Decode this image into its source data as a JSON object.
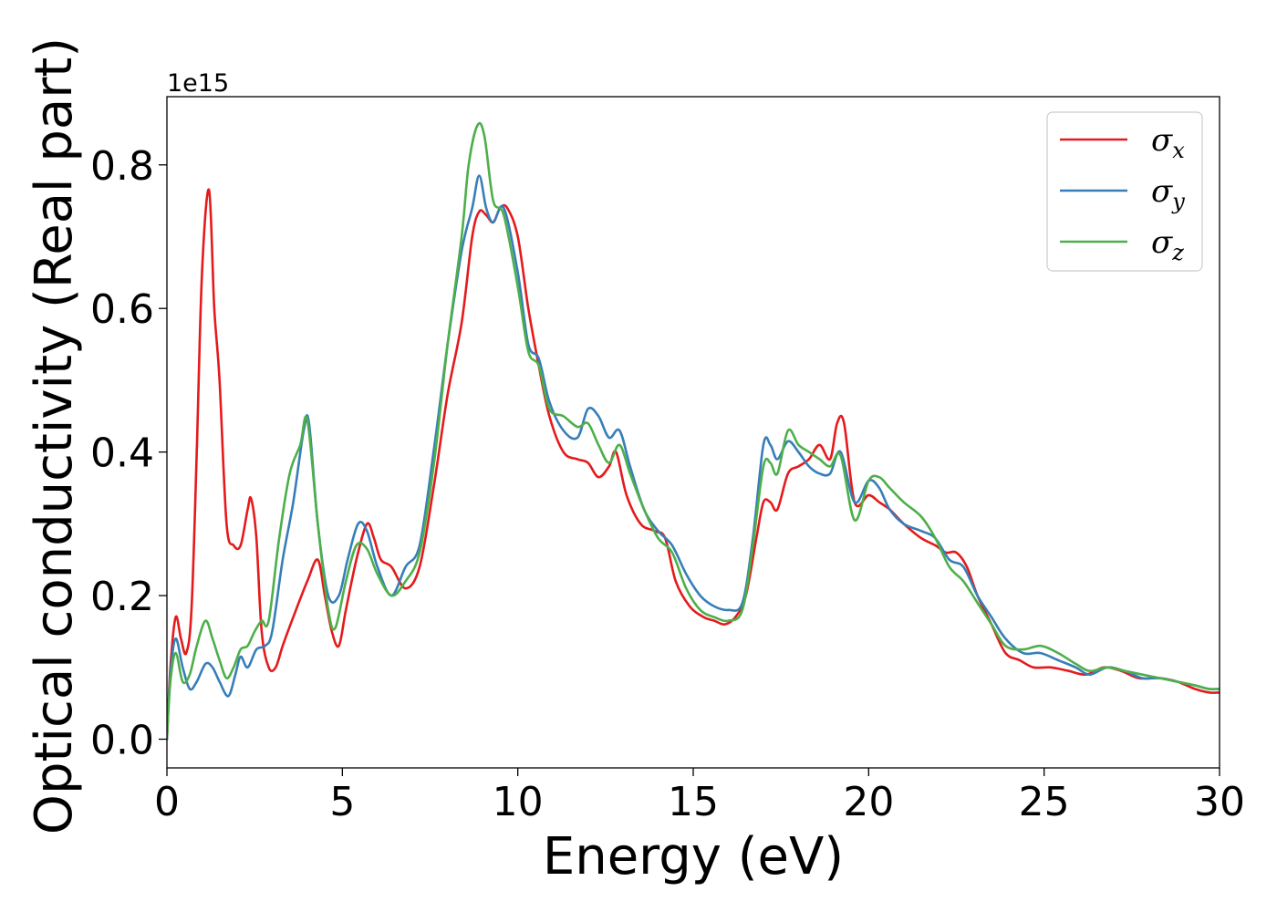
{
  "chart_data": {
    "type": "line",
    "xlabel": "Energy (eV)",
    "ylabel": "Optical conductivity (Real part)",
    "offset_label": "1e15",
    "xlim": [
      0,
      30
    ],
    "ylim": [
      -0.04,
      0.895
    ],
    "xticks": [
      0,
      5,
      10,
      15,
      20,
      25,
      30
    ],
    "xtick_labels": [
      "0",
      "5",
      "10",
      "15",
      "20",
      "25",
      "30"
    ],
    "yticks": [
      0.0,
      0.2,
      0.4,
      0.6,
      0.8
    ],
    "ytick_labels": [
      "0.0",
      "0.2",
      "0.4",
      "0.6",
      "0.8"
    ],
    "grid": false,
    "legend_position": "top-right",
    "series": [
      {
        "name": "σx",
        "base": "σ",
        "sub": "x",
        "color": "#e41a1c",
        "points": [
          [
            0,
            0.0
          ],
          [
            0.1,
            0.1
          ],
          [
            0.25,
            0.17
          ],
          [
            0.4,
            0.14
          ],
          [
            0.55,
            0.12
          ],
          [
            0.7,
            0.18
          ],
          [
            0.85,
            0.4
          ],
          [
            1.0,
            0.65
          ],
          [
            1.2,
            0.765
          ],
          [
            1.35,
            0.6
          ],
          [
            1.5,
            0.5
          ],
          [
            1.7,
            0.3
          ],
          [
            1.9,
            0.27
          ],
          [
            2.1,
            0.27
          ],
          [
            2.3,
            0.32
          ],
          [
            2.4,
            0.335
          ],
          [
            2.55,
            0.28
          ],
          [
            2.7,
            0.15
          ],
          [
            2.9,
            0.1
          ],
          [
            3.1,
            0.1
          ],
          [
            3.3,
            0.13
          ],
          [
            3.6,
            0.17
          ],
          [
            4.0,
            0.22
          ],
          [
            4.3,
            0.25
          ],
          [
            4.5,
            0.2
          ],
          [
            4.7,
            0.15
          ],
          [
            4.9,
            0.13
          ],
          [
            5.1,
            0.18
          ],
          [
            5.4,
            0.25
          ],
          [
            5.7,
            0.3
          ],
          [
            5.9,
            0.28
          ],
          [
            6.1,
            0.25
          ],
          [
            6.4,
            0.24
          ],
          [
            6.8,
            0.21
          ],
          [
            7.2,
            0.24
          ],
          [
            7.6,
            0.35
          ],
          [
            8.0,
            0.48
          ],
          [
            8.4,
            0.58
          ],
          [
            8.7,
            0.7
          ],
          [
            8.9,
            0.735
          ],
          [
            9.1,
            0.73
          ],
          [
            9.3,
            0.72
          ],
          [
            9.5,
            0.74
          ],
          [
            9.7,
            0.74
          ],
          [
            10.0,
            0.7
          ],
          [
            10.3,
            0.6
          ],
          [
            10.6,
            0.52
          ],
          [
            10.9,
            0.45
          ],
          [
            11.3,
            0.4
          ],
          [
            11.7,
            0.39
          ],
          [
            12.0,
            0.385
          ],
          [
            12.3,
            0.365
          ],
          [
            12.6,
            0.38
          ],
          [
            12.8,
            0.4
          ],
          [
            13.1,
            0.34
          ],
          [
            13.5,
            0.3
          ],
          [
            13.9,
            0.29
          ],
          [
            14.2,
            0.28
          ],
          [
            14.5,
            0.22
          ],
          [
            14.9,
            0.185
          ],
          [
            15.3,
            0.17
          ],
          [
            15.6,
            0.165
          ],
          [
            15.9,
            0.16
          ],
          [
            16.2,
            0.17
          ],
          [
            16.5,
            0.2
          ],
          [
            16.8,
            0.28
          ],
          [
            17.0,
            0.33
          ],
          [
            17.2,
            0.33
          ],
          [
            17.4,
            0.32
          ],
          [
            17.7,
            0.37
          ],
          [
            18.0,
            0.38
          ],
          [
            18.3,
            0.39
          ],
          [
            18.6,
            0.41
          ],
          [
            18.9,
            0.39
          ],
          [
            19.1,
            0.44
          ],
          [
            19.3,
            0.44
          ],
          [
            19.6,
            0.33
          ],
          [
            20.0,
            0.34
          ],
          [
            20.3,
            0.33
          ],
          [
            20.6,
            0.32
          ],
          [
            21.0,
            0.3
          ],
          [
            21.5,
            0.28
          ],
          [
            21.9,
            0.27
          ],
          [
            22.2,
            0.26
          ],
          [
            22.5,
            0.26
          ],
          [
            22.8,
            0.24
          ],
          [
            23.1,
            0.2
          ],
          [
            23.5,
            0.16
          ],
          [
            23.9,
            0.12
          ],
          [
            24.3,
            0.11
          ],
          [
            24.7,
            0.1
          ],
          [
            25.2,
            0.1
          ],
          [
            25.7,
            0.095
          ],
          [
            26.2,
            0.09
          ],
          [
            26.7,
            0.1
          ],
          [
            27.2,
            0.095
          ],
          [
            27.7,
            0.085
          ],
          [
            28.3,
            0.085
          ],
          [
            28.8,
            0.08
          ],
          [
            29.3,
            0.07
          ],
          [
            29.7,
            0.065
          ],
          [
            30.0,
            0.065
          ]
        ]
      },
      {
        "name": "σy",
        "base": "σ",
        "sub": "y",
        "color": "#377eb8",
        "points": [
          [
            0,
            0.0
          ],
          [
            0.1,
            0.09
          ],
          [
            0.25,
            0.14
          ],
          [
            0.45,
            0.1
          ],
          [
            0.65,
            0.07
          ],
          [
            0.85,
            0.08
          ],
          [
            1.1,
            0.105
          ],
          [
            1.3,
            0.1
          ],
          [
            1.5,
            0.08
          ],
          [
            1.75,
            0.06
          ],
          [
            1.95,
            0.09
          ],
          [
            2.1,
            0.115
          ],
          [
            2.3,
            0.1
          ],
          [
            2.55,
            0.125
          ],
          [
            2.8,
            0.13
          ],
          [
            3.0,
            0.15
          ],
          [
            3.3,
            0.25
          ],
          [
            3.6,
            0.33
          ],
          [
            3.9,
            0.43
          ],
          [
            4.05,
            0.44
          ],
          [
            4.3,
            0.3
          ],
          [
            4.6,
            0.2
          ],
          [
            4.9,
            0.2
          ],
          [
            5.15,
            0.25
          ],
          [
            5.45,
            0.3
          ],
          [
            5.7,
            0.29
          ],
          [
            6.0,
            0.24
          ],
          [
            6.4,
            0.2
          ],
          [
            6.8,
            0.24
          ],
          [
            7.2,
            0.27
          ],
          [
            7.6,
            0.4
          ],
          [
            8.0,
            0.55
          ],
          [
            8.4,
            0.68
          ],
          [
            8.7,
            0.74
          ],
          [
            8.9,
            0.785
          ],
          [
            9.1,
            0.74
          ],
          [
            9.3,
            0.72
          ],
          [
            9.6,
            0.74
          ],
          [
            10.0,
            0.65
          ],
          [
            10.3,
            0.55
          ],
          [
            10.6,
            0.53
          ],
          [
            10.9,
            0.47
          ],
          [
            11.3,
            0.43
          ],
          [
            11.7,
            0.42
          ],
          [
            12.0,
            0.46
          ],
          [
            12.3,
            0.45
          ],
          [
            12.6,
            0.42
          ],
          [
            12.9,
            0.43
          ],
          [
            13.2,
            0.38
          ],
          [
            13.6,
            0.32
          ],
          [
            14.0,
            0.29
          ],
          [
            14.4,
            0.27
          ],
          [
            14.8,
            0.23
          ],
          [
            15.2,
            0.2
          ],
          [
            15.6,
            0.185
          ],
          [
            16.0,
            0.18
          ],
          [
            16.4,
            0.19
          ],
          [
            16.7,
            0.28
          ],
          [
            17.0,
            0.41
          ],
          [
            17.2,
            0.41
          ],
          [
            17.4,
            0.39
          ],
          [
            17.7,
            0.415
          ],
          [
            18.0,
            0.4
          ],
          [
            18.3,
            0.38
          ],
          [
            18.6,
            0.37
          ],
          [
            18.9,
            0.37
          ],
          [
            19.2,
            0.4
          ],
          [
            19.6,
            0.33
          ],
          [
            20.0,
            0.36
          ],
          [
            20.3,
            0.35
          ],
          [
            20.6,
            0.32
          ],
          [
            21.0,
            0.3
          ],
          [
            21.5,
            0.29
          ],
          [
            21.9,
            0.28
          ],
          [
            22.3,
            0.25
          ],
          [
            22.7,
            0.24
          ],
          [
            23.1,
            0.2
          ],
          [
            23.5,
            0.17
          ],
          [
            23.9,
            0.14
          ],
          [
            24.4,
            0.12
          ],
          [
            24.9,
            0.12
          ],
          [
            25.4,
            0.11
          ],
          [
            25.9,
            0.1
          ],
          [
            26.3,
            0.09
          ],
          [
            26.8,
            0.1
          ],
          [
            27.3,
            0.095
          ],
          [
            27.8,
            0.085
          ],
          [
            28.3,
            0.085
          ],
          [
            28.8,
            0.08
          ],
          [
            29.3,
            0.075
          ],
          [
            29.7,
            0.07
          ],
          [
            30.0,
            0.07
          ]
        ]
      },
      {
        "name": "σz",
        "base": "σ",
        "sub": "z",
        "color": "#4daf4a",
        "points": [
          [
            0,
            0.0
          ],
          [
            0.1,
            0.08
          ],
          [
            0.25,
            0.12
          ],
          [
            0.45,
            0.08
          ],
          [
            0.65,
            0.09
          ],
          [
            0.85,
            0.13
          ],
          [
            1.1,
            0.165
          ],
          [
            1.3,
            0.14
          ],
          [
            1.5,
            0.11
          ],
          [
            1.7,
            0.085
          ],
          [
            1.9,
            0.1
          ],
          [
            2.1,
            0.125
          ],
          [
            2.3,
            0.13
          ],
          [
            2.5,
            0.15
          ],
          [
            2.7,
            0.165
          ],
          [
            2.9,
            0.165
          ],
          [
            3.2,
            0.28
          ],
          [
            3.5,
            0.37
          ],
          [
            3.8,
            0.41
          ],
          [
            4.0,
            0.445
          ],
          [
            4.3,
            0.3
          ],
          [
            4.6,
            0.18
          ],
          [
            4.8,
            0.155
          ],
          [
            5.1,
            0.22
          ],
          [
            5.4,
            0.27
          ],
          [
            5.7,
            0.265
          ],
          [
            6.0,
            0.23
          ],
          [
            6.4,
            0.2
          ],
          [
            6.8,
            0.22
          ],
          [
            7.2,
            0.26
          ],
          [
            7.6,
            0.38
          ],
          [
            8.0,
            0.55
          ],
          [
            8.4,
            0.7
          ],
          [
            8.6,
            0.8
          ],
          [
            8.85,
            0.855
          ],
          [
            9.05,
            0.84
          ],
          [
            9.3,
            0.75
          ],
          [
            9.6,
            0.73
          ],
          [
            10.0,
            0.63
          ],
          [
            10.3,
            0.54
          ],
          [
            10.6,
            0.52
          ],
          [
            10.9,
            0.46
          ],
          [
            11.3,
            0.45
          ],
          [
            11.7,
            0.435
          ],
          [
            12.0,
            0.44
          ],
          [
            12.3,
            0.41
          ],
          [
            12.6,
            0.385
          ],
          [
            12.9,
            0.41
          ],
          [
            13.2,
            0.37
          ],
          [
            13.6,
            0.32
          ],
          [
            14.0,
            0.28
          ],
          [
            14.4,
            0.26
          ],
          [
            14.8,
            0.21
          ],
          [
            15.2,
            0.18
          ],
          [
            15.6,
            0.17
          ],
          [
            16.0,
            0.165
          ],
          [
            16.4,
            0.18
          ],
          [
            16.7,
            0.27
          ],
          [
            17.0,
            0.38
          ],
          [
            17.2,
            0.385
          ],
          [
            17.4,
            0.37
          ],
          [
            17.7,
            0.43
          ],
          [
            18.0,
            0.41
          ],
          [
            18.3,
            0.4
          ],
          [
            18.6,
            0.39
          ],
          [
            18.9,
            0.38
          ],
          [
            19.2,
            0.395
          ],
          [
            19.6,
            0.305
          ],
          [
            20.0,
            0.36
          ],
          [
            20.3,
            0.365
          ],
          [
            20.6,
            0.35
          ],
          [
            21.0,
            0.33
          ],
          [
            21.5,
            0.31
          ],
          [
            21.9,
            0.28
          ],
          [
            22.3,
            0.24
          ],
          [
            22.7,
            0.22
          ],
          [
            23.1,
            0.19
          ],
          [
            23.5,
            0.16
          ],
          [
            23.9,
            0.13
          ],
          [
            24.4,
            0.125
          ],
          [
            24.9,
            0.13
          ],
          [
            25.4,
            0.12
          ],
          [
            25.9,
            0.105
          ],
          [
            26.3,
            0.095
          ],
          [
            26.8,
            0.1
          ],
          [
            27.3,
            0.095
          ],
          [
            27.8,
            0.09
          ],
          [
            28.3,
            0.085
          ],
          [
            28.8,
            0.08
          ],
          [
            29.3,
            0.075
          ],
          [
            29.7,
            0.07
          ],
          [
            30.0,
            0.07
          ]
        ]
      }
    ]
  }
}
